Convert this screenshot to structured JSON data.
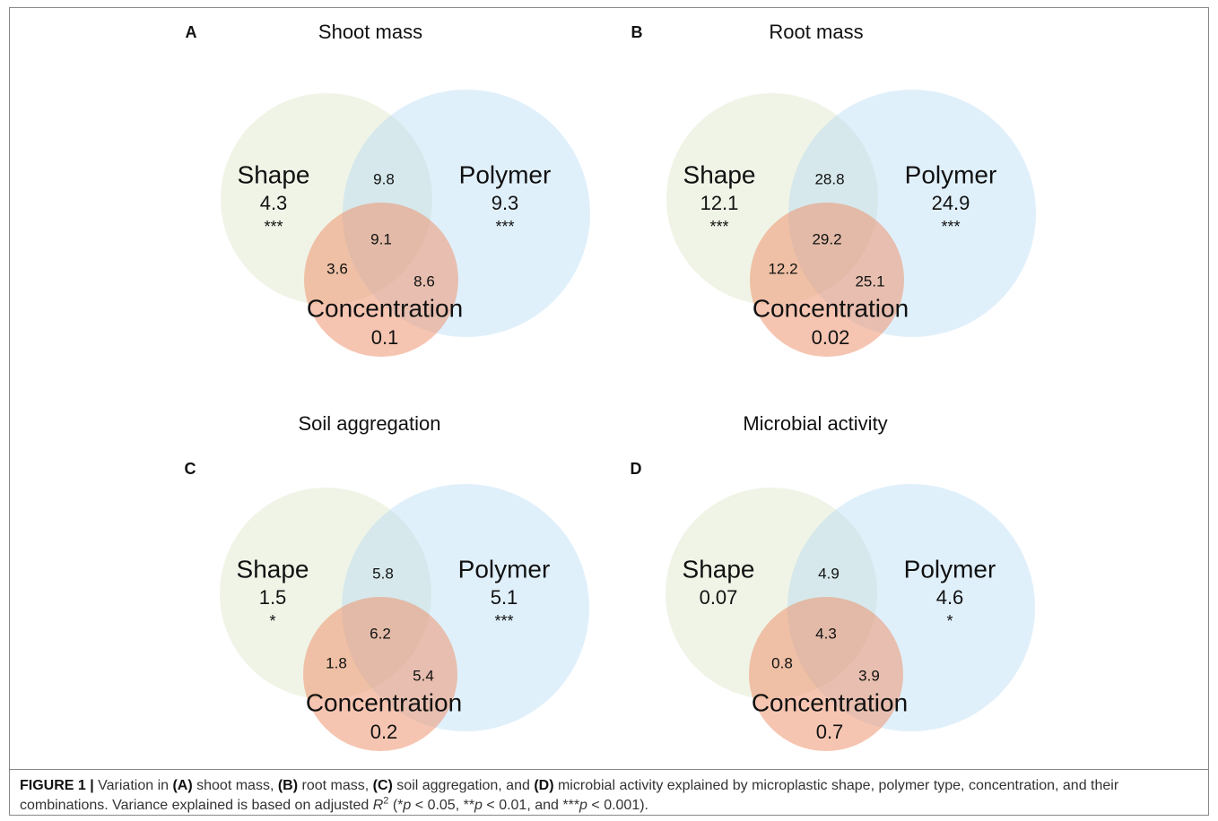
{
  "panels": [
    {
      "letter": "A",
      "title": "Shoot mass",
      "shape": {
        "name": "Shape",
        "value": "4.3",
        "sig": "***"
      },
      "polymer": {
        "name": "Polymer",
        "value": "9.3",
        "sig": "***"
      },
      "concentration": {
        "name": "Concentration",
        "value": "0.1"
      },
      "shape_polymer": "9.8",
      "all": "9.1",
      "shape_concentration": "3.6",
      "polymer_concentration": "8.6"
    },
    {
      "letter": "B",
      "title": "Root mass",
      "shape": {
        "name": "Shape",
        "value": "12.1",
        "sig": "***"
      },
      "polymer": {
        "name": "Polymer",
        "value": "24.9",
        "sig": "***"
      },
      "concentration": {
        "name": "Concentration",
        "value": "0.02"
      },
      "shape_polymer": "28.8",
      "all": "29.2",
      "shape_concentration": "12.2",
      "polymer_concentration": "25.1"
    },
    {
      "letter": "C",
      "title": "Soil aggregation",
      "shape": {
        "name": "Shape",
        "value": "1.5",
        "sig": "*"
      },
      "polymer": {
        "name": "Polymer",
        "value": "5.1",
        "sig": "***"
      },
      "concentration": {
        "name": "Concentration",
        "value": "0.2"
      },
      "shape_polymer": "5.8",
      "all": "6.2",
      "shape_concentration": "1.8",
      "polymer_concentration": "5.4"
    },
    {
      "letter": "D",
      "title": "Microbial activity",
      "shape": {
        "name": "Shape",
        "value": "0.07"
      },
      "polymer": {
        "name": "Polymer",
        "value": "4.6",
        "sig": "*"
      },
      "concentration": {
        "name": "Concentration",
        "value": "0.7"
      },
      "shape_polymer": "4.9",
      "all": "4.3",
      "shape_concentration": "0.8",
      "polymer_concentration": "3.9"
    }
  ],
  "caption": [
    {
      "text": "FIGURE 1 |",
      "style": "bold"
    },
    {
      "text": " Variation in "
    },
    {
      "text": "(A)",
      "style": "bold"
    },
    {
      "text": " shoot mass, "
    },
    {
      "text": "(B)",
      "style": "bold"
    },
    {
      "text": " root mass, "
    },
    {
      "text": "(C)",
      "style": "bold"
    },
    {
      "text": " soil aggregation, and "
    },
    {
      "text": "(D)",
      "style": "bold"
    },
    {
      "text": " microbial activity explained by microplastic shape, polymer type, concentration, and their combinations. Variance explained is based on adjusted "
    },
    {
      "text": "R",
      "style": "italic"
    },
    {
      "text": "2",
      "style": "sup"
    },
    {
      "text": " (*"
    },
    {
      "text": "p",
      "style": "italic"
    },
    {
      "text": " < 0.05, **"
    },
    {
      "text": "p",
      "style": "italic"
    },
    {
      "text": " < 0.01, and ***"
    },
    {
      "text": "p",
      "style": "italic"
    },
    {
      "text": " < 0.001)."
    }
  ]
}
